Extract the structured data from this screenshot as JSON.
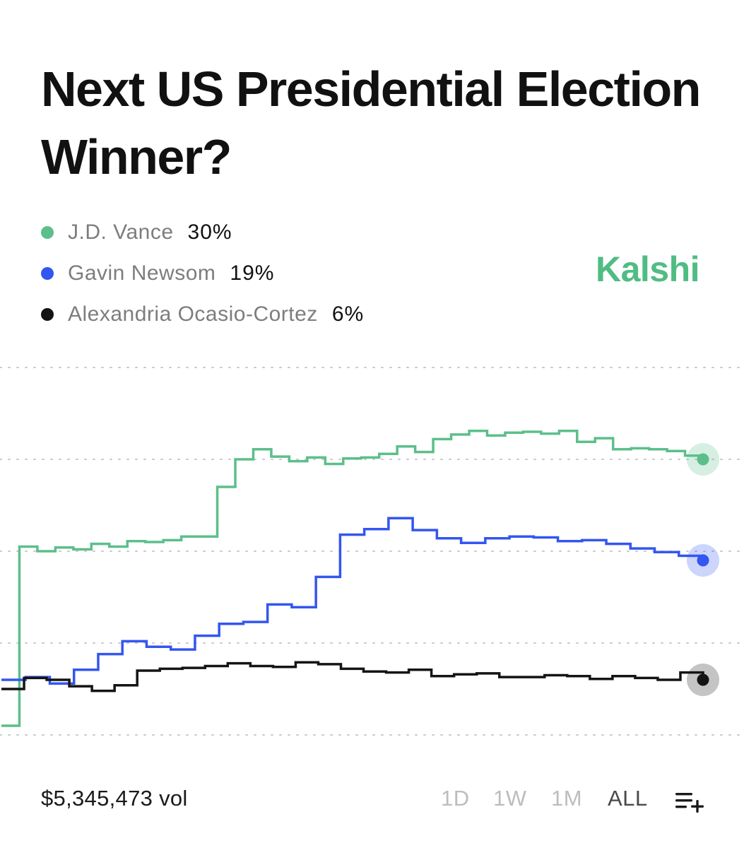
{
  "title": "Next US Presidential Election Winner?",
  "brand": {
    "name": "Kalshi",
    "color": "#4fbd83"
  },
  "legend": [
    {
      "name": "J.D. Vance",
      "pct": "30%",
      "color": "#5cbf8a"
    },
    {
      "name": "Gavin Newsom",
      "pct": "19%",
      "color": "#3356f0"
    },
    {
      "name": "Alexandria Ocasio-Cortez",
      "pct": "6%",
      "color": "#141414"
    }
  ],
  "volume": "$5,345,473 vol",
  "ranges": [
    {
      "label": "1D",
      "active": false
    },
    {
      "label": "1W",
      "active": false
    },
    {
      "label": "1M",
      "active": false
    },
    {
      "label": "ALL",
      "active": true
    }
  ],
  "list_icon": "list-add-icon",
  "chart_data": {
    "type": "line",
    "title": "",
    "grid": true,
    "y_gridlines": [
      40,
      30,
      20,
      10,
      0
    ],
    "ylim": [
      0,
      40
    ],
    "x_points": 40,
    "series": [
      {
        "name": "J.D. Vance",
        "color": "#5cbf8a",
        "values": [
          1,
          20.5,
          20,
          20.4,
          20.2,
          20.8,
          20.5,
          21.1,
          21,
          21.2,
          21.6,
          21.6,
          27,
          30,
          31.1,
          30.3,
          29.8,
          30.2,
          29.5,
          30.1,
          30.2,
          30.6,
          31.4,
          30.8,
          32.2,
          32.7,
          33.1,
          32.6,
          32.9,
          33,
          32.8,
          33.1,
          31.9,
          32.3,
          31.1,
          31.2,
          31.1,
          30.9,
          30.4,
          30
        ]
      },
      {
        "name": "Gavin Newsom",
        "color": "#3356f0",
        "values": [
          6,
          6.3,
          5.6,
          7.1,
          8.8,
          10.2,
          9.6,
          9.3,
          10.8,
          12.1,
          12.3,
          14.2,
          13.9,
          17.2,
          21.8,
          22.4,
          23.6,
          22.3,
          21.4,
          20.9,
          21.4,
          21.6,
          21.5,
          21.1,
          21.2,
          20.8,
          20.3,
          19.9,
          19.5,
          19
        ]
      },
      {
        "name": "Alexandria Ocasio-Cortez",
        "color": "#141414",
        "values": [
          5,
          6.2,
          6,
          5.3,
          4.8,
          5.4,
          7,
          7.2,
          7.3,
          7.5,
          7.8,
          7.5,
          7.4,
          7.9,
          7.7,
          7.2,
          6.9,
          6.8,
          7.1,
          6.4,
          6.6,
          6.7,
          6.3,
          6.3,
          6.5,
          6.4,
          6.1,
          6.4,
          6.2,
          6,
          6.8,
          6
        ]
      }
    ]
  }
}
